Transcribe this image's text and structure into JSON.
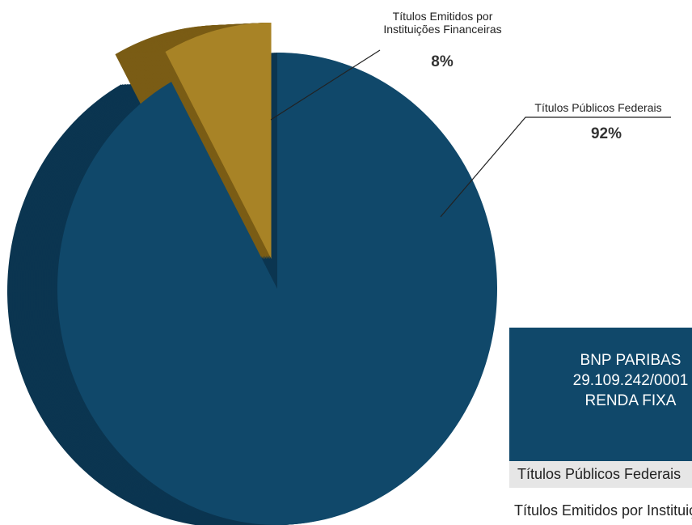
{
  "chart_data": {
    "type": "pie",
    "categories": [
      "Títulos Públicos Federais",
      "Títulos Emitidos por Instituições Financeiras"
    ],
    "values": [
      92,
      8
    ],
    "value_labels": [
      "92%",
      "8%"
    ],
    "colors": [
      "#10486a",
      "#a88326"
    ],
    "side_colors": [
      "#0b3550",
      "#7a5c15"
    ]
  },
  "table": {
    "header": [
      "BNP PARIBAS",
      "29.109.242/0001",
      "RENDA FIXA"
    ]
  }
}
